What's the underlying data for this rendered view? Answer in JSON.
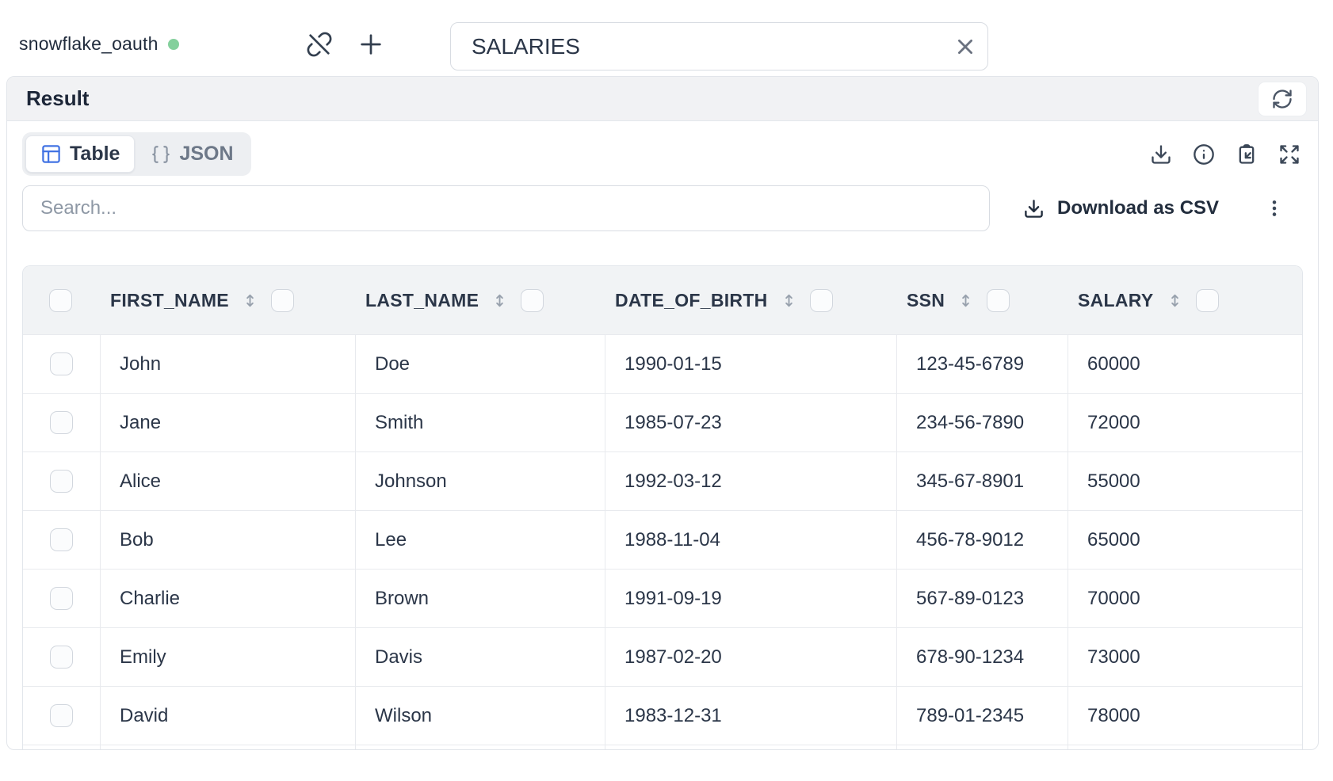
{
  "connection": {
    "name": "snowflake_oauth",
    "status_color": "#84d09c"
  },
  "table_name_input": {
    "value": "SALARIES"
  },
  "result_panel": {
    "title": "Result"
  },
  "view_toggle": {
    "table_label": "Table",
    "json_label": "JSON"
  },
  "toolbar": {
    "search_placeholder": "Search...",
    "download_csv_label": "Download as CSV",
    "icons": [
      "download-icon",
      "info-icon",
      "clipboard-paste-icon",
      "expand-icon",
      "more-vertical-icon"
    ]
  },
  "colors": {
    "accent_blue": "#4273e3",
    "text_dark": "#2b3648",
    "text_gray": "#6d7888",
    "panel_header_bg": "#f1f2f4",
    "table_header_bg": "#f1f3f5",
    "border": "#e4e7ec",
    "status_green": "#84d09c"
  },
  "table": {
    "columns": [
      "FIRST_NAME",
      "LAST_NAME",
      "DATE_OF_BIRTH",
      "SSN",
      "SALARY"
    ],
    "rows": [
      [
        "John",
        "Doe",
        "1990-01-15",
        "123-45-6789",
        "60000"
      ],
      [
        "Jane",
        "Smith",
        "1985-07-23",
        "234-56-7890",
        "72000"
      ],
      [
        "Alice",
        "Johnson",
        "1992-03-12",
        "345-67-8901",
        "55000"
      ],
      [
        "Bob",
        "Lee",
        "1988-11-04",
        "456-78-9012",
        "65000"
      ],
      [
        "Charlie",
        "Brown",
        "1991-09-19",
        "567-89-0123",
        "70000"
      ],
      [
        "Emily",
        "Davis",
        "1987-02-20",
        "678-90-1234",
        "73000"
      ],
      [
        "David",
        "Wilson",
        "1983-12-31",
        "789-01-2345",
        "78000"
      ]
    ]
  }
}
